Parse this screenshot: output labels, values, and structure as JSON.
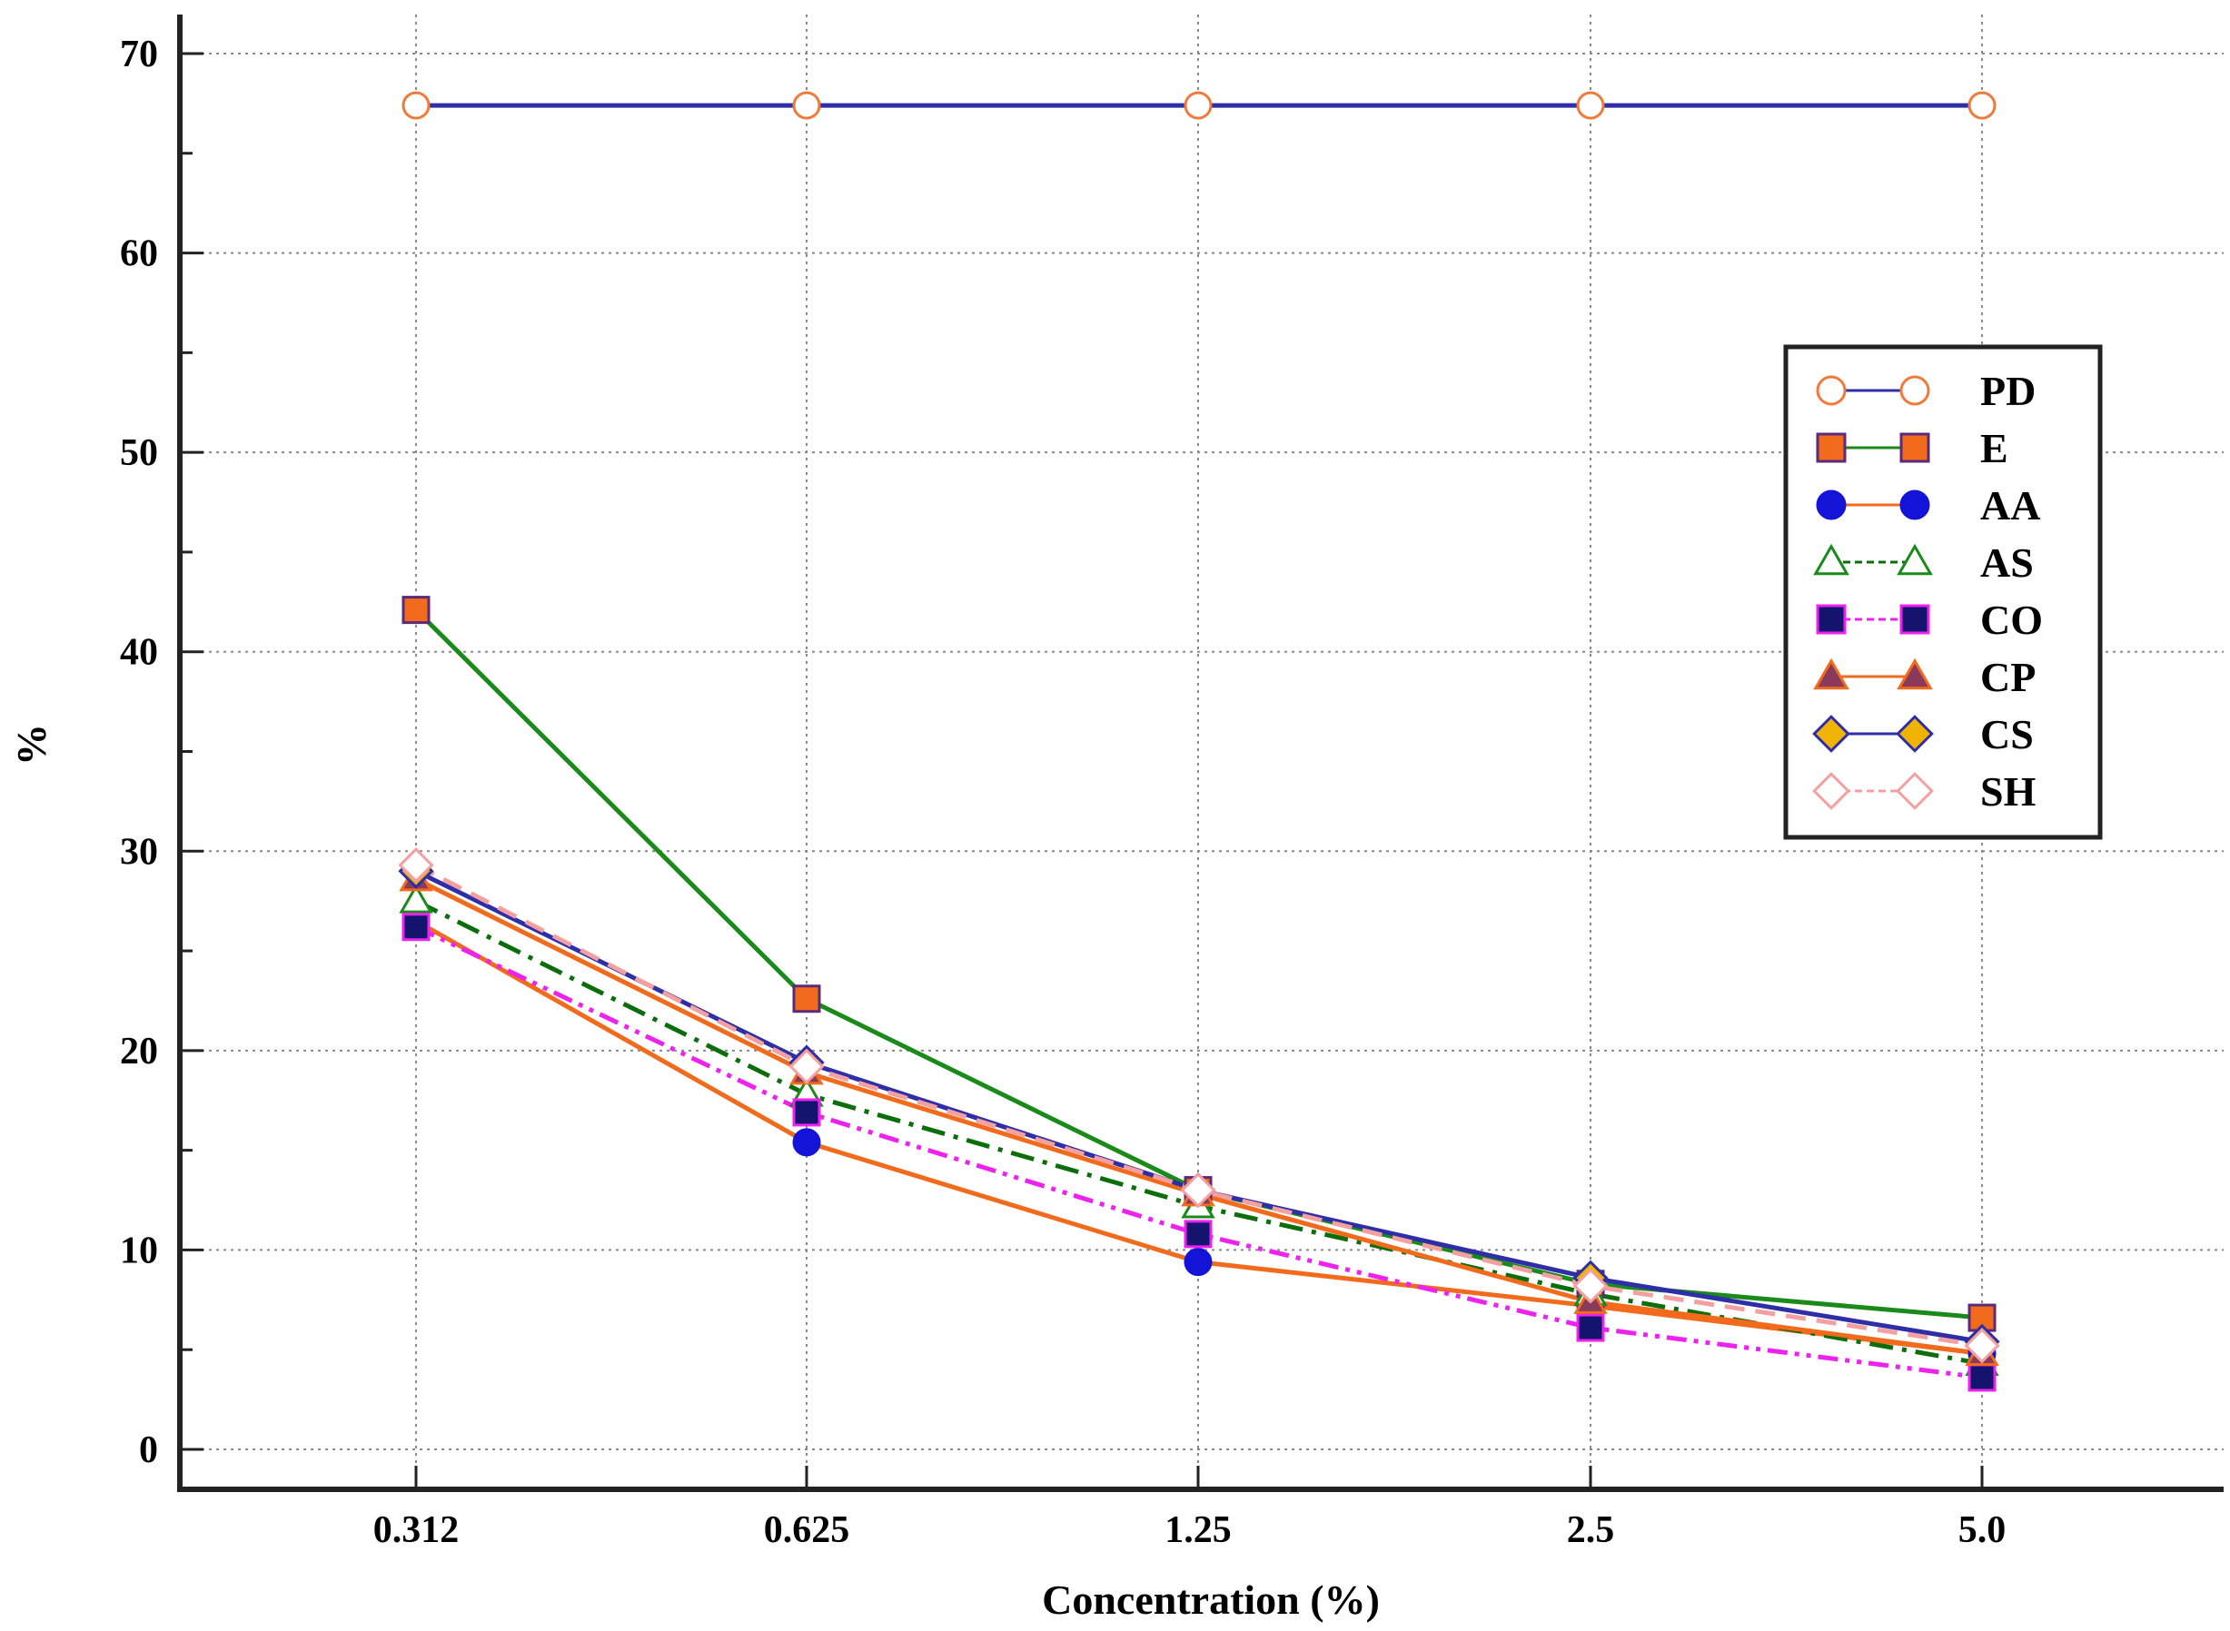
{
  "chart_data": {
    "type": "line",
    "xlabel": "Concentration (%)",
    "ylabel": "%",
    "categories": [
      "0.312",
      "0.625",
      "1.25",
      "2.5",
      "5.0"
    ],
    "ylim": [
      0,
      70
    ],
    "yticks": [
      "0",
      "10",
      "20",
      "30",
      "40",
      "50",
      "60",
      "70"
    ],
    "grid": true,
    "legend_position": "right",
    "series": [
      {
        "name": "PD",
        "values": [
          67.4,
          67.4,
          67.4,
          67.4,
          67.4
        ],
        "line_color": "#2e2ea8",
        "marker": "circle",
        "marker_fill": "#ffffff",
        "marker_stroke": "#f07a3a",
        "dash": "solid"
      },
      {
        "name": "E",
        "values": [
          42.1,
          22.6,
          13.0,
          8.3,
          6.6
        ],
        "line_color": "#1a8a1a",
        "marker": "square",
        "marker_fill": "#f26a1b",
        "marker_stroke": "#5b2a7a",
        "dash": "solid"
      },
      {
        "name": "AA",
        "values": [
          26.5,
          15.4,
          9.4,
          7.2,
          4.8
        ],
        "line_color": "#f26a1b",
        "marker": "circle",
        "marker_fill": "#1414d8",
        "marker_stroke": "#1414d8",
        "dash": "solid"
      },
      {
        "name": "AS",
        "values": [
          27.5,
          17.8,
          12.2,
          7.8,
          4.3
        ],
        "line_color": "#0b6e0b",
        "marker": "triangle",
        "marker_fill": "#ffffff",
        "marker_stroke": "#1a8a1a",
        "dash": "dashdot"
      },
      {
        "name": "CO",
        "values": [
          26.2,
          16.9,
          10.8,
          6.1,
          3.6
        ],
        "line_color": "#ee22ee",
        "marker": "square",
        "marker_fill": "#14146e",
        "marker_stroke": "#ee22ee",
        "dash": "dashdotdot"
      },
      {
        "name": "CP",
        "values": [
          28.6,
          18.9,
          12.8,
          7.4,
          4.8
        ],
        "line_color": "#f26a1b",
        "marker": "triangle",
        "marker_fill": "#8a3a5a",
        "marker_stroke": "#f26a1b",
        "dash": "solid"
      },
      {
        "name": "CS",
        "values": [
          29.0,
          19.4,
          13.0,
          8.6,
          5.4
        ],
        "line_color": "#2e2ea8",
        "marker": "diamond",
        "marker_fill": "#f0b400",
        "marker_stroke": "#2e2ea8",
        "dash": "solid"
      },
      {
        "name": "SH",
        "values": [
          29.3,
          19.2,
          13.0,
          8.2,
          5.2
        ],
        "line_color": "#f4a0a0",
        "marker": "diamond",
        "marker_fill": "#ffffff",
        "marker_stroke": "#f4a0a0",
        "dash": "dashed"
      }
    ]
  }
}
